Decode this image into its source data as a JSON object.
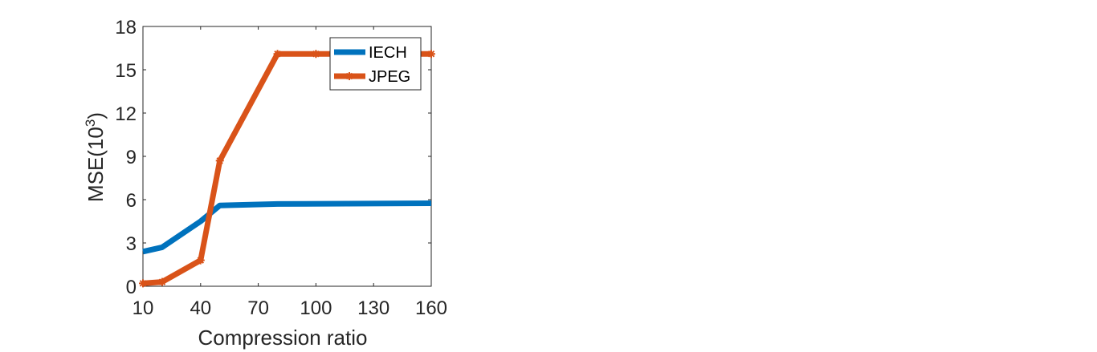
{
  "chart_data": {
    "type": "line",
    "xlabel": "Compression ratio",
    "ylabel": "MSE(10",
    "ylabel_sup": "3",
    "ylabel_close": ")",
    "xlim": [
      10,
      160
    ],
    "ylim": [
      0,
      18
    ],
    "xticks": [
      10,
      40,
      70,
      100,
      130,
      160
    ],
    "yticks": [
      0,
      3,
      6,
      9,
      12,
      15,
      18
    ],
    "grid": false,
    "legend_position": "top-right",
    "series": [
      {
        "name": "IECH",
        "color": "#0072BD",
        "marker": "none",
        "x": [
          10,
          20,
          40,
          50,
          80,
          160
        ],
        "y": [
          2.4,
          2.7,
          4.5,
          5.6,
          5.7,
          5.75
        ]
      },
      {
        "name": "JPEG",
        "color": "#D95319",
        "marker": "star",
        "x": [
          10,
          20,
          40,
          50,
          80,
          100,
          160
        ],
        "y": [
          0.2,
          0.3,
          1.8,
          8.7,
          16.1,
          16.1,
          16.1
        ]
      }
    ]
  }
}
